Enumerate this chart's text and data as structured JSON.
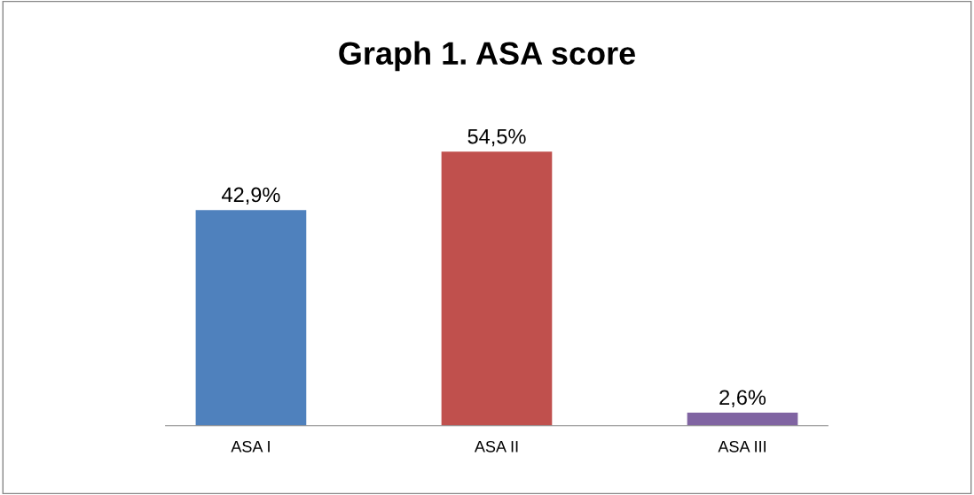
{
  "chart_data": {
    "type": "bar",
    "title": "Graph 1. ASA score",
    "categories": [
      "ASA I",
      "ASA II",
      "ASA III"
    ],
    "values": [
      42.9,
      54.5,
      2.6
    ],
    "colors": [
      "#4f81bd",
      "#c0504d",
      "#8064a2"
    ],
    "value_labels": [
      "42,9%",
      "54,5%",
      "2,6%"
    ],
    "grid": false,
    "legend": false
  }
}
